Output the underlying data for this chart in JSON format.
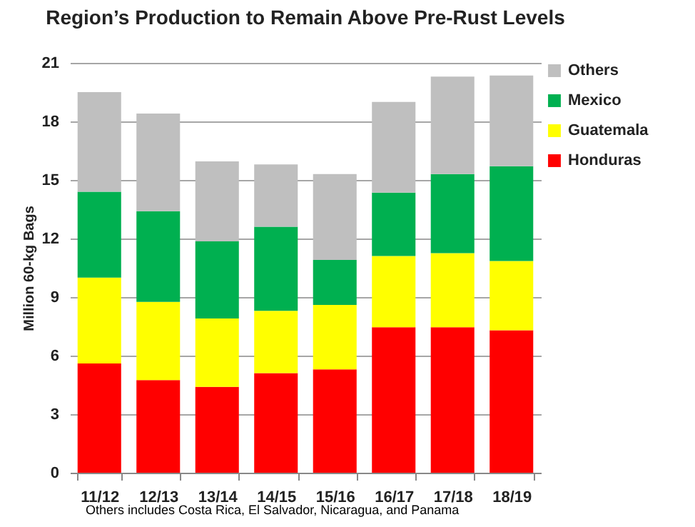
{
  "chart_data": {
    "type": "bar",
    "title": "Region’s Production to Remain Above Pre-Rust Levels",
    "ylabel": "Million 60-kg Bags",
    "categories": [
      "11/12",
      "12/13",
      "13/14",
      "14/15",
      "15/16",
      "16/17",
      "17/18",
      "18/19"
    ],
    "stacked": true,
    "series": [
      {
        "name": "Honduras",
        "color": "#ff0000",
        "values": [
          5.6,
          4.75,
          4.4,
          5.1,
          5.3,
          7.45,
          7.45,
          7.3
        ]
      },
      {
        "name": "Guatemala",
        "color": "#ffff00",
        "values": [
          4.4,
          4.0,
          3.5,
          3.2,
          3.3,
          3.65,
          3.8,
          3.55
        ]
      },
      {
        "name": "Mexico",
        "color": "#00b050",
        "values": [
          4.4,
          4.65,
          3.95,
          4.3,
          2.3,
          3.25,
          4.05,
          4.85
        ]
      },
      {
        "name": "Others",
        "color": "#bfbfbf",
        "values": [
          5.1,
          5.0,
          4.1,
          3.2,
          4.4,
          4.65,
          5.0,
          4.65
        ]
      }
    ],
    "ylim": [
      0,
      21
    ],
    "yticks": [
      0,
      3,
      6,
      9,
      12,
      15,
      18,
      21
    ],
    "grid": "y",
    "legend": "right",
    "annotations": [
      "Others includes Costa Rica, El Salvador, Nicaragua, and Panama"
    ]
  }
}
